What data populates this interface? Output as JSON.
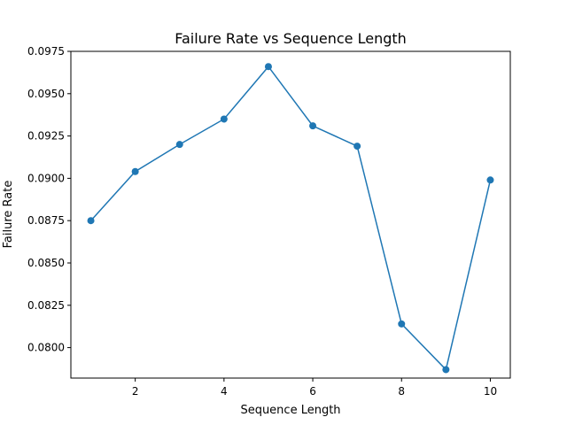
{
  "chart_data": {
    "type": "line",
    "title": "Failure Rate vs Sequence Length",
    "xlabel": "Sequence Length",
    "ylabel": "Failure Rate",
    "x": [
      1,
      2,
      3,
      4,
      5,
      6,
      7,
      8,
      9,
      10
    ],
    "series": [
      {
        "values": [
          0.0875,
          0.0904,
          0.092,
          0.0935,
          0.0966,
          0.0931,
          0.0919,
          0.0814,
          0.0787,
          0.0899
        ],
        "color": "#1f77b4",
        "marker": "circle"
      }
    ],
    "xlim": [
      0.55,
      10.45
    ],
    "ylim": [
      0.0782,
      0.0975
    ],
    "xticks": [
      2,
      4,
      6,
      8,
      10
    ],
    "yticks": [
      0.08,
      0.0825,
      0.085,
      0.0875,
      0.09,
      0.0925,
      0.095,
      0.0975
    ],
    "xtick_labels": [
      "2",
      "4",
      "6",
      "8",
      "10"
    ],
    "ytick_labels": [
      "0.0800",
      "0.0825",
      "0.0850",
      "0.0875",
      "0.0900",
      "0.0925",
      "0.0950",
      "0.0975"
    ],
    "grid": false,
    "legend": "none"
  }
}
